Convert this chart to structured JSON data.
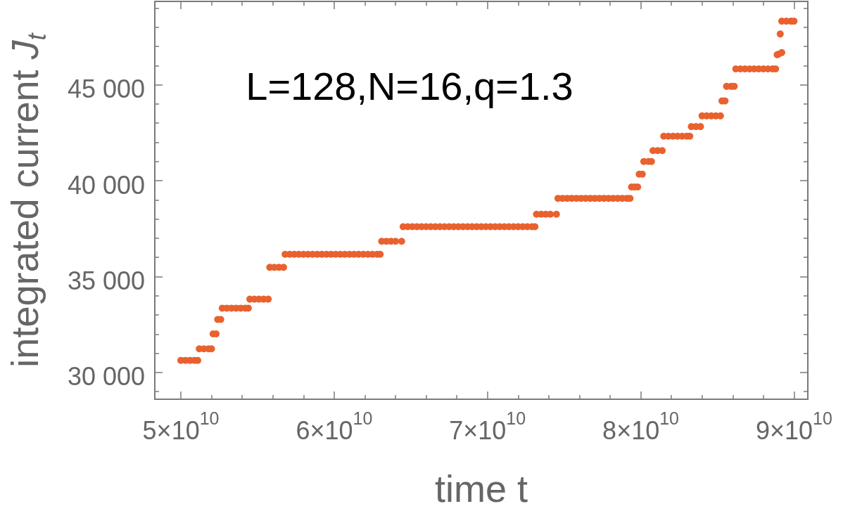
{
  "chart_data": {
    "type": "scatter",
    "xlabel": "time t",
    "ylabel": "integrated current J$_{t}$",
    "annotations": [
      "L=128,N=16,q=1.3"
    ],
    "x": [
      50000000000.0,
      50300000000.0,
      50600000000.0,
      50900000000.0,
      51100000000.0,
      51200000000.0,
      51500000000.0,
      51800000000.0,
      52000000000.0,
      52100000000.0,
      52300000000.0,
      52400000000.0,
      52600000000.0,
      52700000000.0,
      53000000000.0,
      53300000000.0,
      53600000000.0,
      53900000000.0,
      54200000000.0,
      54400000000.0,
      54500000000.0,
      54800000000.0,
      55100000000.0,
      55400000000.0,
      55700000000.0,
      55800000000.0,
      56100000000.0,
      56400000000.0,
      56700000000.0,
      56800000000.0,
      57100000000.0,
      57400000000.0,
      57700000000.0,
      58000000000.0,
      58300000000.0,
      58600000000.0,
      58900000000.0,
      59200000000.0,
      59500000000.0,
      59800000000.0,
      60100000000.0,
      60400000000.0,
      60700000000.0,
      61000000000.0,
      61300000000.0,
      61600000000.0,
      61900000000.0,
      62200000000.0,
      62500000000.0,
      62800000000.0,
      63000000000.0,
      63100000000.0,
      63400000000.0,
      63700000000.0,
      64000000000.0,
      64400000000.0,
      64500000000.0,
      64800000000.0,
      65100000000.0,
      65400000000.0,
      65700000000.0,
      66000000000.0,
      66300000000.0,
      66600000000.0,
      66900000000.0,
      67200000000.0,
      67500000000.0,
      67800000000.0,
      68100000000.0,
      68400000000.0,
      68700000000.0,
      69000000000.0,
      69300000000.0,
      69600000000.0,
      69900000000.0,
      70200000000.0,
      70500000000.0,
      70800000000.0,
      71100000000.0,
      71400000000.0,
      71700000000.0,
      72000000000.0,
      72300000000.0,
      72600000000.0,
      72900000000.0,
      73100000000.0,
      73200000000.0,
      73500000000.0,
      73800000000.0,
      74100000000.0,
      74500000000.0,
      74600000000.0,
      74900000000.0,
      75200000000.0,
      75500000000.0,
      75800000000.0,
      76100000000.0,
      76400000000.0,
      76700000000.0,
      77000000000.0,
      77300000000.0,
      77600000000.0,
      77900000000.0,
      78200000000.0,
      78500000000.0,
      78800000000.0,
      79100000000.0,
      79300000000.0,
      79400000000.0,
      79600000000.0,
      79800000000.0,
      79900000000.0,
      80100000000.0,
      80200000000.0,
      80500000000.0,
      80700000000.0,
      80800000000.0,
      81100000000.0,
      81400000000.0,
      81500000000.0,
      81800000000.0,
      82100000000.0,
      82400000000.0,
      82700000000.0,
      83000000000.0,
      83200000000.0,
      83300000000.0,
      83600000000.0,
      83900000000.0,
      84000000000.0,
      84300000000.0,
      84600000000.0,
      84900000000.0,
      85200000000.0,
      85300000000.0,
      85500000000.0,
      85600000000.0,
      85900000000.0,
      86100000000.0,
      86200000000.0,
      86500000000.0,
      86800000000.0,
      87100000000.0,
      87400000000.0,
      87700000000.0,
      88000000000.0,
      88300000000.0,
      88600000000.0,
      88800000000.0,
      88900000000.0,
      89000000000.0,
      89200000000.0,
      89100000000.0,
      89200000000.0,
      89500000000.0,
      89800000000.0,
      90000000000.0
    ],
    "values": [
      30630,
      30630,
      30630,
      30630,
      30630,
      31230,
      31230,
      31230,
      31230,
      32010,
      32010,
      32760,
      32760,
      33350,
      33350,
      33350,
      33350,
      33350,
      33350,
      33350,
      33820,
      33820,
      33820,
      33820,
      33820,
      35480,
      35480,
      35480,
      35480,
      36160,
      36160,
      36160,
      36160,
      36160,
      36160,
      36160,
      36160,
      36160,
      36160,
      36160,
      36160,
      36160,
      36160,
      36160,
      36160,
      36160,
      36160,
      36160,
      36160,
      36160,
      36160,
      36840,
      36840,
      36840,
      36840,
      36840,
      37600,
      37600,
      37600,
      37600,
      37600,
      37600,
      37600,
      37600,
      37600,
      37600,
      37600,
      37600,
      37600,
      37600,
      37600,
      37600,
      37600,
      37600,
      37600,
      37600,
      37600,
      37600,
      37600,
      37600,
      37600,
      37600,
      37600,
      37600,
      37600,
      37600,
      38250,
      38250,
      38250,
      38250,
      38250,
      39080,
      39080,
      39080,
      39080,
      39080,
      39080,
      39080,
      39080,
      39080,
      39080,
      39080,
      39080,
      39080,
      39080,
      39080,
      39080,
      39080,
      39670,
      39670,
      39670,
      40340,
      40340,
      41000,
      41000,
      41000,
      41570,
      41570,
      41570,
      42320,
      42320,
      42320,
      42320,
      42320,
      42320,
      42320,
      42820,
      42820,
      42820,
      43380,
      43380,
      43380,
      43380,
      43380,
      44160,
      44160,
      44920,
      44920,
      44920,
      45830,
      45830,
      45830,
      45830,
      45830,
      45830,
      45830,
      45830,
      45830,
      45830,
      46570,
      46600,
      46680,
      47650,
      48320,
      48320,
      48320,
      48320
    ],
    "color": "#e9612f",
    "marker": "circle",
    "xlim": [
      48300000000.0,
      90900000000.0
    ],
    "ylim": [
      28600,
      49350
    ],
    "xticks": [
      {
        "value": 50000000000.0,
        "label": "5×10$^{10}$"
      },
      {
        "value": 60000000000.0,
        "label": "6×10$^{10}$"
      },
      {
        "value": 70000000000.0,
        "label": "7×10$^{10}$"
      },
      {
        "value": 80000000000.0,
        "label": "8×10$^{10}$"
      },
      {
        "value": 90000000000.0,
        "label": "9×10$^{10}$"
      }
    ],
    "yticks": [
      {
        "value": 30000,
        "label": "30 000"
      },
      {
        "value": 35000,
        "label": "35 000"
      },
      {
        "value": 40000,
        "label": "40 000"
      },
      {
        "value": 45000,
        "label": "45 000"
      }
    ],
    "grid": false
  }
}
